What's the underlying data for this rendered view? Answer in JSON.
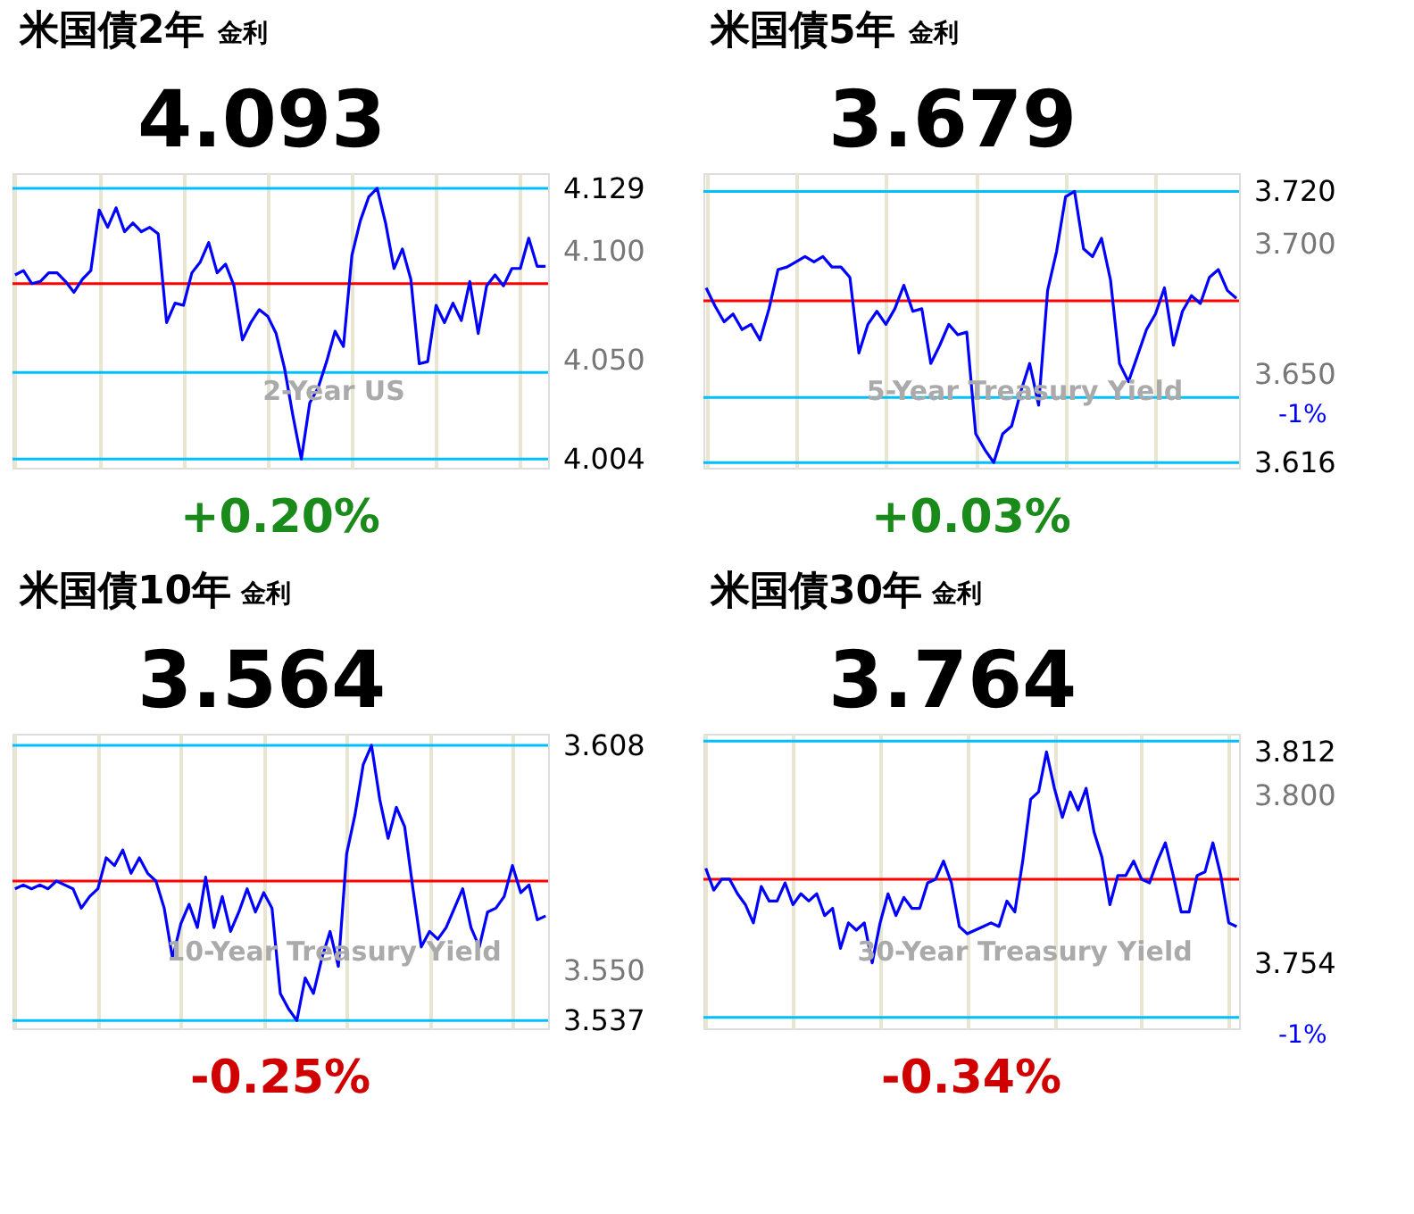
{
  "chart_data": [
    {
      "type": "line",
      "title": "米国債2年",
      "subtitle": "金利",
      "categories": [
        null,
        null,
        null,
        null,
        null,
        null,
        null,
        null,
        null,
        null,
        null,
        null,
        null,
        null,
        null,
        null,
        null,
        null,
        null,
        null,
        null,
        null,
        null,
        null,
        null,
        null,
        null,
        null,
        null,
        null,
        null,
        null,
        null,
        null,
        null,
        null,
        null,
        null,
        null,
        null,
        null,
        null,
        null,
        null,
        null,
        null,
        null,
        null,
        null,
        null,
        null,
        null,
        null,
        null,
        null,
        null,
        null,
        null,
        null,
        null,
        null,
        null,
        null,
        null
      ],
      "ylim": [
        4.0,
        4.136
      ],
      "yticks": [
        4.004,
        {
          "value": 4.05,
          "label": "4.050"
        },
        {
          "value": 4.1,
          "label": "4.100"
        },
        4.129
      ],
      "tick_labels": "y",
      "grid": "x",
      "series": [
        {
          "color": "#0000ff",
          "values": [
            4.089,
            4.091,
            4.085,
            4.086,
            4.09,
            4.09,
            4.086,
            4.081,
            4.087,
            4.091,
            4.119,
            4.111,
            4.12,
            4.109,
            4.113,
            4.109,
            4.111,
            4.108,
            4.067,
            4.076,
            4.075,
            4.09,
            4.095,
            4.104,
            4.09,
            4.094,
            4.084,
            4.059,
            4.067,
            4.073,
            4.07,
            4.062,
            4.046,
            4.024,
            4.004,
            4.03,
            4.037,
            4.049,
            4.063,
            4.056,
            4.098,
            4.114,
            4.125,
            4.129,
            4.113,
            4.092,
            4.101,
            4.087,
            4.048,
            4.049,
            4.075,
            4.067,
            4.076,
            4.068,
            4.086,
            4.062,
            4.084,
            4.089,
            4.084,
            4.092,
            4.092,
            4.106,
            4.093,
            4.093
          ]
        }
      ],
      "ref_lines": [
        {
          "axis": "y",
          "value": 4.085,
          "label": null,
          "color": "#ff0000"
        },
        {
          "axis": "y",
          "value": 4.129,
          "label": null,
          "color": "#00bfff"
        },
        {
          "axis": "y",
          "value": 4.044,
          "label": null,
          "color": "#00bfff"
        },
        {
          "axis": "y",
          "value": 4.004,
          "label": null,
          "color": "#00bfff"
        }
      ],
      "annotations": [
        "4.093",
        "+0.20%",
        "2-Year US"
      ]
    },
    {
      "type": "line",
      "title": "米国債5年",
      "subtitle": "金利",
      "categories": [
        null,
        null,
        null,
        null,
        null,
        null,
        null,
        null,
        null,
        null,
        null,
        null,
        null,
        null,
        null,
        null,
        null,
        null,
        null,
        null,
        null,
        null,
        null,
        null,
        null,
        null,
        null,
        null,
        null,
        null,
        null,
        null,
        null,
        null,
        null,
        null,
        null,
        null,
        null,
        null,
        null,
        null,
        null,
        null,
        null,
        null,
        null,
        null,
        null,
        null,
        null,
        null,
        null,
        null,
        null,
        null,
        null,
        null,
        null,
        null
      ],
      "ylim": [
        3.614,
        3.727
      ],
      "yticks": [
        3.616,
        {
          "value": 3.65,
          "label": "3.650"
        },
        {
          "value": 3.7,
          "label": "3.700"
        },
        {
          "value": 3.72,
          "label": "3.720"
        }
      ],
      "tick_labels": "y",
      "grid": "x",
      "series": [
        {
          "color": "#0000ff",
          "values": [
            3.683,
            3.676,
            3.67,
            3.673,
            3.667,
            3.669,
            3.663,
            3.675,
            3.69,
            3.691,
            3.693,
            3.695,
            3.693,
            3.695,
            3.691,
            3.691,
            3.687,
            3.658,
            3.669,
            3.674,
            3.669,
            3.675,
            3.684,
            3.674,
            3.675,
            3.654,
            3.661,
            3.669,
            3.665,
            3.666,
            3.627,
            3.621,
            3.616,
            3.627,
            3.63,
            3.643,
            3.654,
            3.638,
            3.682,
            3.697,
            3.718,
            3.72,
            3.698,
            3.695,
            3.702,
            3.686,
            3.654,
            3.647,
            3.657,
            3.667,
            3.673,
            3.683,
            3.661,
            3.674,
            3.68,
            3.677,
            3.687,
            3.69,
            3.682,
            3.679
          ]
        }
      ],
      "ref_lines": [
        {
          "axis": "y",
          "value": 3.678,
          "label": null,
          "color": "#ff0000"
        },
        {
          "axis": "y",
          "value": 3.72,
          "label": null,
          "color": "#00bfff"
        },
        {
          "axis": "y",
          "value": 3.641,
          "label": null,
          "color": "#00bfff"
        },
        {
          "axis": "y",
          "value": 3.616,
          "label": null,
          "color": "#00bfff"
        }
      ],
      "annotations": [
        "3.679",
        "+0.03%",
        "5-Year Treasury Yield",
        "-1%"
      ]
    },
    {
      "type": "line",
      "title": "米国債10年",
      "subtitle": "金利",
      "categories": [
        null,
        null,
        null,
        null,
        null,
        null,
        null,
        null,
        null,
        null,
        null,
        null,
        null,
        null,
        null,
        null,
        null,
        null,
        null,
        null,
        null,
        null,
        null,
        null,
        null,
        null,
        null,
        null,
        null,
        null,
        null,
        null,
        null,
        null,
        null,
        null,
        null,
        null,
        null,
        null,
        null,
        null,
        null,
        null,
        null,
        null,
        null,
        null,
        null,
        null,
        null,
        null,
        null,
        null,
        null,
        null,
        null,
        null,
        null,
        null,
        null,
        null,
        null,
        null,
        null
      ],
      "ylim": [
        3.535,
        3.611
      ],
      "yticks": [
        3.537,
        {
          "value": 3.55,
          "label": "3.550"
        },
        3.608
      ],
      "tick_labels": "y",
      "grid": "x",
      "series": [
        {
          "color": "#0000ff",
          "values": [
            3.571,
            3.572,
            3.571,
            3.572,
            3.571,
            3.573,
            3.572,
            3.571,
            3.566,
            3.569,
            3.571,
            3.579,
            3.577,
            3.581,
            3.575,
            3.579,
            3.575,
            3.573,
            3.566,
            3.553,
            3.562,
            3.567,
            3.561,
            3.574,
            3.561,
            3.569,
            3.56,
            3.565,
            3.571,
            3.565,
            3.57,
            3.566,
            3.544,
            3.54,
            3.537,
            3.548,
            3.544,
            3.553,
            3.56,
            3.551,
            3.58,
            3.59,
            3.603,
            3.608,
            3.594,
            3.584,
            3.592,
            3.587,
            3.571,
            3.556,
            3.56,
            3.558,
            3.561,
            3.566,
            3.571,
            3.561,
            3.556,
            3.565,
            3.566,
            3.569,
            3.577,
            3.57,
            3.572,
            3.563,
            3.564
          ]
        }
      ],
      "ref_lines": [
        {
          "axis": "y",
          "value": 3.573,
          "label": null,
          "color": "#ff0000"
        },
        {
          "axis": "y",
          "value": 3.608,
          "label": null,
          "color": "#00bfff"
        },
        {
          "axis": "y",
          "value": 3.537,
          "label": null,
          "color": "#00bfff"
        }
      ],
      "annotations": [
        "3.564",
        "-0.25%",
        "10-Year Treasury Yield"
      ]
    },
    {
      "type": "line",
      "title": "米国債30年",
      "subtitle": "金利",
      "categories": [
        null,
        null,
        null,
        null,
        null,
        null,
        null,
        null,
        null,
        null,
        null,
        null,
        null,
        null,
        null,
        null,
        null,
        null,
        null,
        null,
        null,
        null,
        null,
        null,
        null,
        null,
        null,
        null,
        null,
        null,
        null,
        null,
        null,
        null,
        null,
        null,
        null,
        null,
        null,
        null,
        null,
        null,
        null,
        null,
        null,
        null,
        null,
        null,
        null,
        null,
        null,
        null,
        null,
        null,
        null,
        null,
        null,
        null,
        null,
        null,
        null,
        null,
        null,
        null,
        null,
        null,
        null,
        null
      ],
      "ylim": [
        3.736,
        3.817
      ],
      "yticks": [
        3.754,
        {
          "value": 3.8,
          "label": "3.800"
        },
        3.812
      ],
      "tick_labels": "y",
      "grid": "x",
      "series": [
        {
          "color": "#0000ff",
          "values": [
            3.78,
            3.774,
            3.777,
            3.777,
            3.773,
            3.77,
            3.765,
            3.775,
            3.771,
            3.771,
            3.776,
            3.77,
            3.773,
            3.771,
            3.773,
            3.767,
            3.769,
            3.758,
            3.765,
            3.763,
            3.765,
            3.754,
            3.765,
            3.773,
            3.767,
            3.772,
            3.769,
            3.769,
            3.776,
            3.777,
            3.782,
            3.776,
            3.764,
            3.762,
            3.763,
            3.764,
            3.765,
            3.764,
            3.771,
            3.768,
            3.782,
            3.799,
            3.801,
            3.812,
            3.802,
            3.794,
            3.801,
            3.796,
            3.802,
            3.79,
            3.783,
            3.77,
            3.778,
            3.778,
            3.782,
            3.777,
            3.776,
            3.782,
            3.787,
            3.778,
            3.768,
            3.768,
            3.778,
            3.779,
            3.787,
            3.778,
            3.765,
            3.764
          ]
        }
      ],
      "ref_lines": [
        {
          "axis": "y",
          "value": 3.777,
          "label": null,
          "color": "#ff0000"
        },
        {
          "axis": "y",
          "value": 3.815,
          "label": null,
          "color": "#00bfff"
        },
        {
          "axis": "y",
          "value": 3.739,
          "label": null,
          "color": "#00bfff"
        }
      ],
      "annotations": [
        "3.764",
        "-0.34%",
        "30-Year Treasury Yield",
        "-1%"
      ]
    }
  ]
}
